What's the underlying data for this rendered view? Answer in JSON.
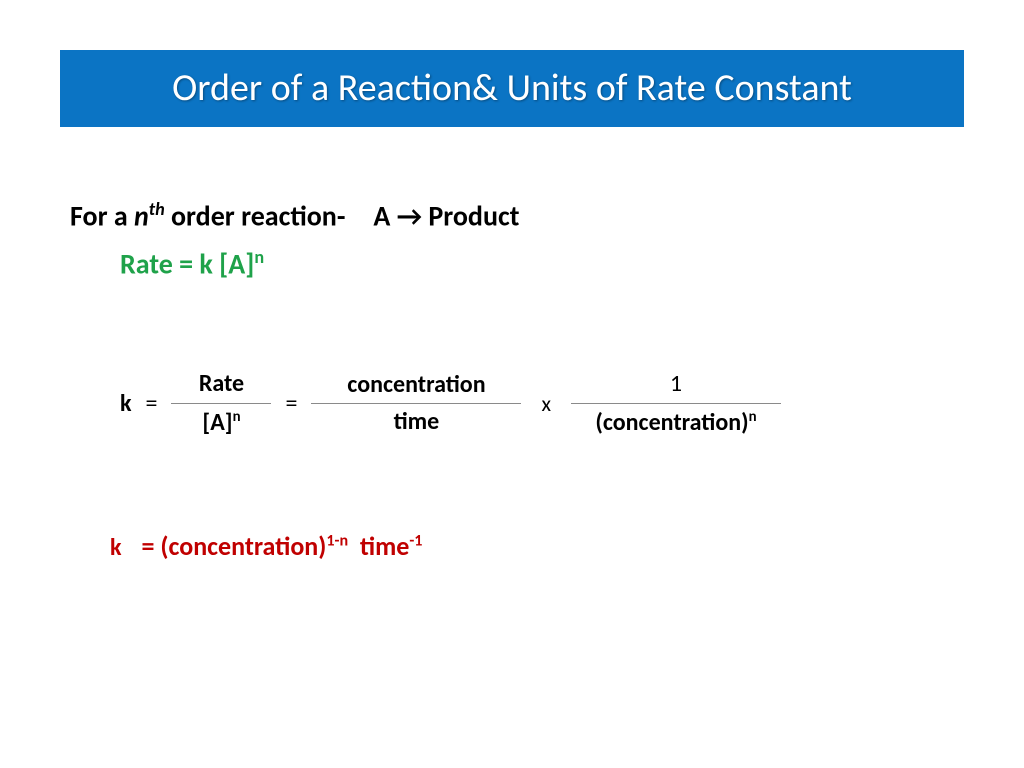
{
  "colors": {
    "title_bg": "#0b74c4",
    "title_text": "#ffffff",
    "body_text": "#000000",
    "rate_eq": "#1fa24a",
    "result_red": "#c00000",
    "frac_bar": "#8a8a8a",
    "page_bg": "#ffffff"
  },
  "fonts": {
    "title_size_pt": 38,
    "body_size_pt": 28,
    "eq_size_pt": 24,
    "family": "Calibri"
  },
  "title": "Order of a Reaction& Units of Rate Constant",
  "line1": {
    "prefix": "For a ",
    "n": "n",
    "th": "th",
    "mid": " order reaction-",
    "rhs": "A → Product"
  },
  "rate_eq": {
    "label": "Rate = k [A]",
    "exp": "n"
  },
  "derivation": {
    "k": "k",
    "eq": "=",
    "frac1_num": "Rate",
    "frac1_den_base": "[A]",
    "frac1_den_exp": "n",
    "frac2_num": "concentration",
    "frac2_den": "time",
    "x": "x",
    "frac3_num": "1",
    "frac3_den_base": "(concentration)",
    "frac3_den_exp": "n"
  },
  "result": {
    "k": "k",
    "eq_base1": "= (concentration)",
    "exp1": "1-n",
    "spacer": "  ",
    "base2": "time",
    "exp2": "-1"
  }
}
